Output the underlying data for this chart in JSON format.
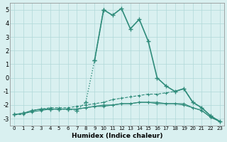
{
  "xlabel": "Humidex (Indice chaleur)",
  "x_values": [
    0,
    1,
    2,
    3,
    4,
    5,
    6,
    7,
    8,
    9,
    10,
    11,
    12,
    13,
    14,
    15,
    16,
    17,
    18,
    19,
    20,
    21,
    22,
    23
  ],
  "line1": [
    -2.7,
    -2.7,
    -2.4,
    -2.3,
    -2.2,
    -2.2,
    -2.2,
    -2.1,
    -2.0,
    -1.9,
    -1.8,
    -1.6,
    -1.5,
    -1.4,
    -1.3,
    -1.2,
    -1.2,
    -1.1,
    -1.0,
    -0.8,
    -1.8,
    -2.2,
    -2.8,
    -3.2
  ],
  "line2": [
    -2.7,
    -2.6,
    -2.4,
    -2.3,
    -2.3,
    -2.3,
    -2.3,
    -2.3,
    -2.2,
    -2.1,
    -2.0,
    -2.0,
    -1.9,
    -1.9,
    -1.8,
    -1.8,
    -1.8,
    -1.9,
    -1.9,
    -1.9,
    -2.2,
    -2.4,
    -2.9,
    -3.2
  ],
  "line3_dotted": [
    0,
    1,
    2,
    3,
    4,
    5,
    6,
    7,
    8,
    9,
    10
  ],
  "line3_dotted_y": [
    -2.7,
    -2.6,
    -2.4,
    -2.3,
    -2.3,
    -2.3,
    -2.3,
    -2.4,
    -1.8,
    1.3,
    5.0
  ],
  "line3_solid": [
    9,
    10,
    11,
    12,
    13,
    14,
    15,
    16,
    17,
    18,
    19,
    20,
    21,
    22,
    23
  ],
  "line3_solid_y": [
    1.3,
    5.0,
    4.6,
    5.1,
    3.6,
    4.3,
    2.7,
    0.0,
    -0.6,
    -1.0,
    -0.8,
    -1.8,
    -2.2,
    -2.8,
    -3.2
  ],
  "line4": [
    -2.7,
    -2.6,
    -2.5,
    -2.4,
    -2.3,
    -2.3,
    -2.3,
    -2.3,
    -2.2,
    -2.1,
    -2.1,
    -2.0,
    -1.9,
    -1.9,
    -1.8,
    -1.8,
    -1.9,
    -1.9,
    -1.9,
    -2.0,
    -2.2,
    -2.4,
    -2.9,
    -3.2
  ],
  "color": "#2e8b7a",
  "bg_color": "#d9f0f0",
  "grid_color": "#b0d8d8",
  "ylim": [
    -3.5,
    5.5
  ],
  "xlim": [
    -0.5,
    23.5
  ]
}
